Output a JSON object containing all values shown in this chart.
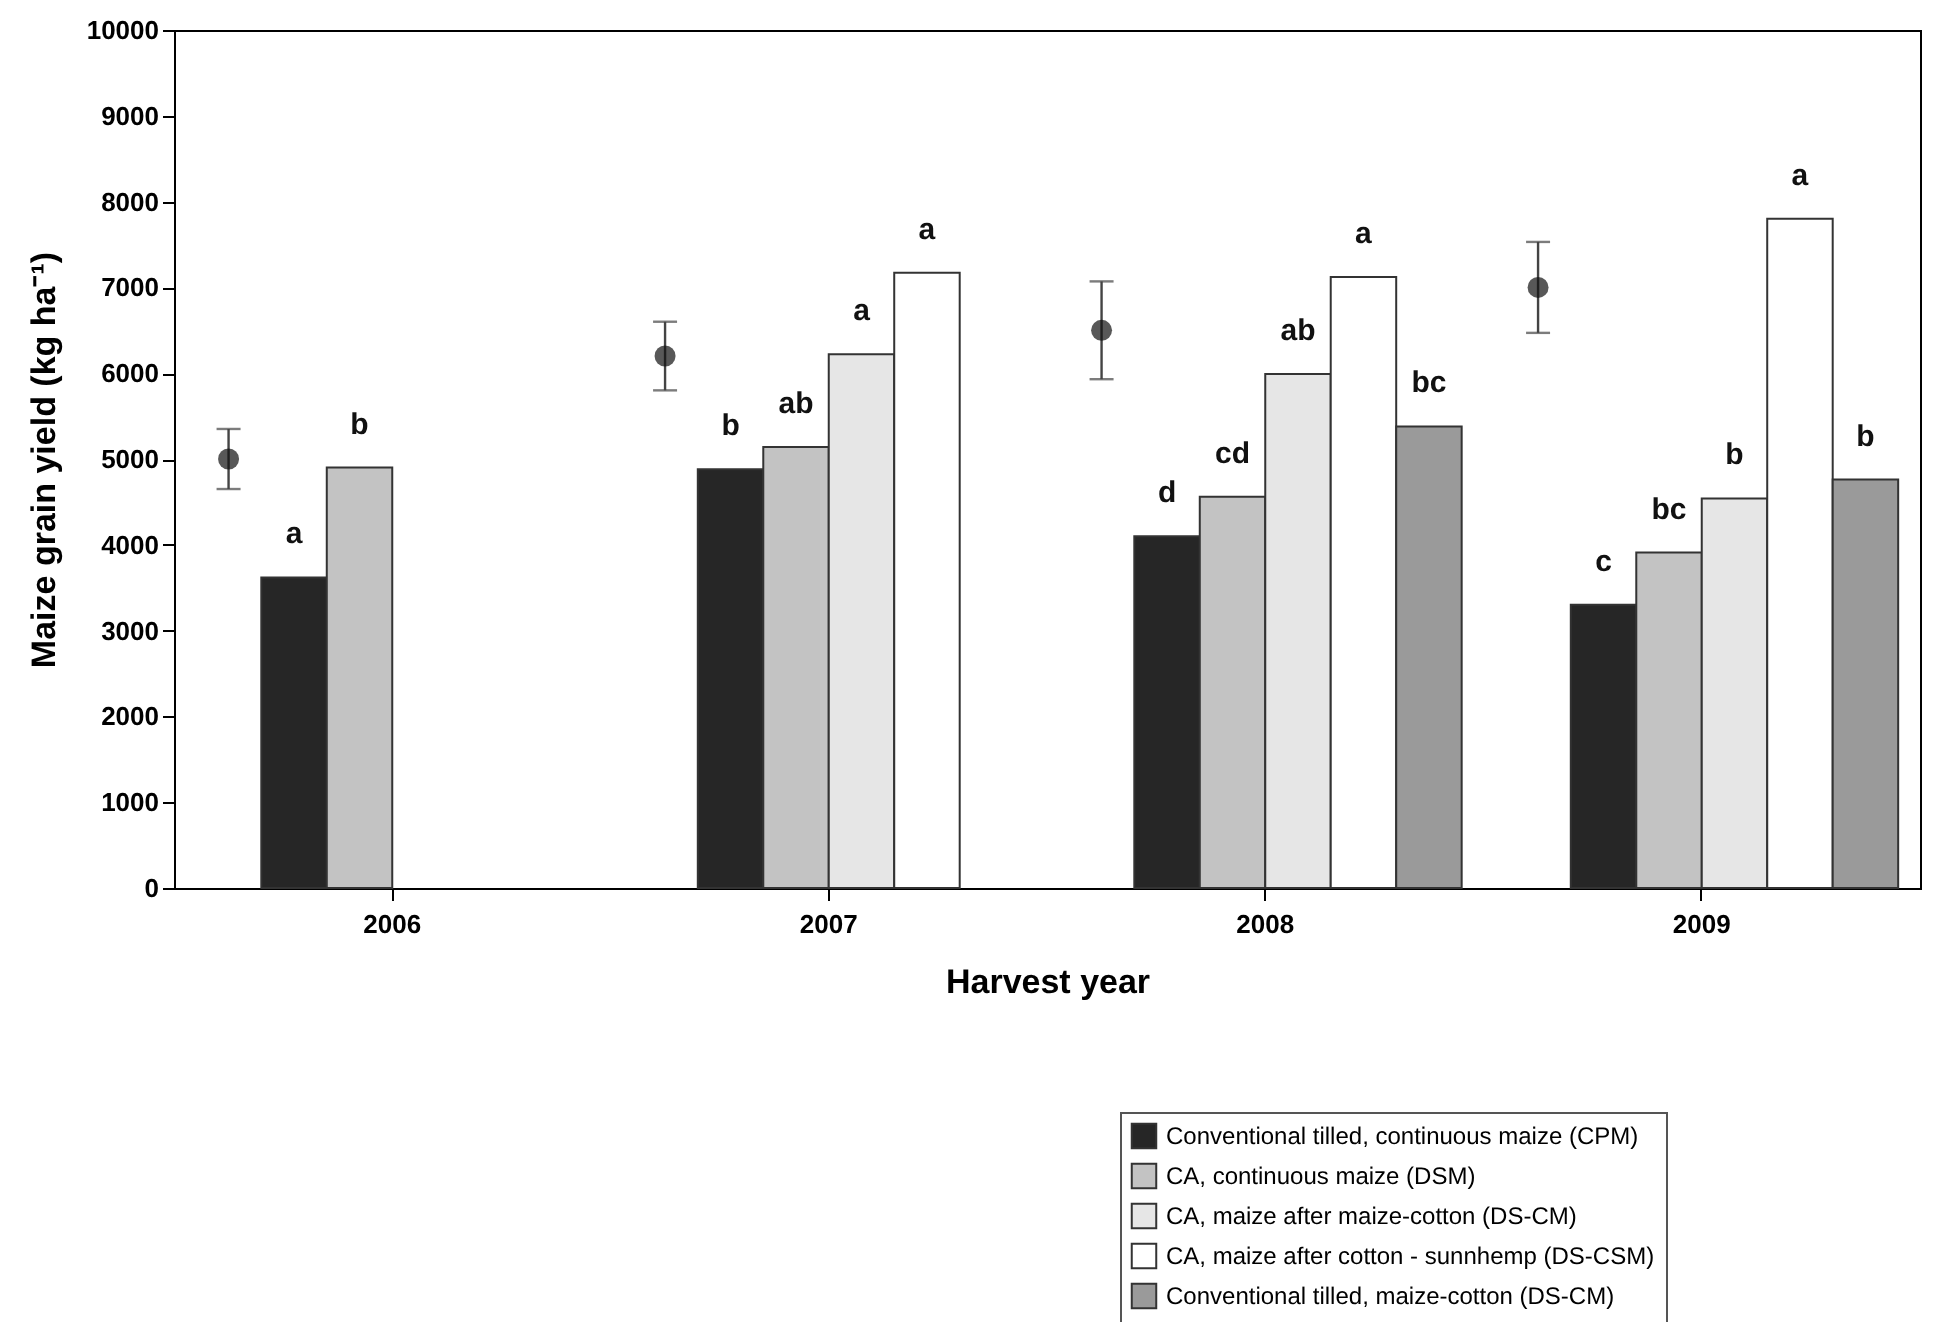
{
  "chart_data": {
    "type": "bar",
    "xlabel": "Harvest year",
    "ylabel": "Maize grain yield (kg ha⁻¹)",
    "categories": [
      "2006",
      "2007",
      "2008",
      "2009"
    ],
    "ylim": [
      0,
      10000
    ],
    "yticks": [
      0,
      1000,
      2000,
      3000,
      4000,
      5000,
      6000,
      7000,
      8000,
      9000,
      10000
    ],
    "legend": "bottom right",
    "grid": false,
    "series": [
      {
        "type": "scatter",
        "color": "#111111",
        "marker": "circle",
        "values": [
          5000,
          6200,
          6500,
          7000
        ],
        "errors": [
          350,
          400,
          570,
          530
        ]
      },
      {
        "name": "Conventional tilled, continuous maize (CPM)",
        "color": "#262626",
        "values": [
          3620,
          4880,
          4100,
          3300
        ],
        "value_labels": [
          "a",
          "b",
          "d",
          "c"
        ]
      },
      {
        "name": "CA, continuous maize (DSM)",
        "color": "#c3c3c3",
        "values": [
          4900,
          5140,
          4560,
          3910
        ],
        "value_labels": [
          "b",
          "ab",
          "cd",
          "bc"
        ]
      },
      {
        "name": "CA, maize after maize-cotton (DS-CM)",
        "color": "#e6e6e6",
        "values": [
          null,
          6220,
          5990,
          4540
        ],
        "value_labels": [
          null,
          "a",
          "ab",
          "b"
        ]
      },
      {
        "name": "CA, maize after cotton - sunnhemp (DS-CSM)",
        "color": "#ffffff",
        "values": [
          null,
          7170,
          7120,
          7800
        ],
        "value_labels": [
          null,
          "a",
          "a",
          "a"
        ]
      },
      {
        "name": "Conventional tilled, maize-cotton (DS-CM)",
        "color": "#9a9a9a",
        "values": [
          null,
          null,
          5380,
          4760
        ],
        "value_labels": [
          null,
          null,
          "bc",
          "b"
        ]
      }
    ]
  }
}
